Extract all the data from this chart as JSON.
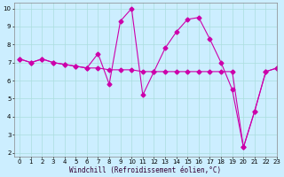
{
  "xlabel": "Windchill (Refroidissement éolien,°C)",
  "xlim": [
    -0.5,
    23
  ],
  "ylim": [
    1.8,
    10.3
  ],
  "yticks": [
    2,
    3,
    4,
    5,
    6,
    7,
    8,
    9,
    10
  ],
  "xticks": [
    0,
    1,
    2,
    3,
    4,
    5,
    6,
    7,
    8,
    9,
    10,
    11,
    12,
    13,
    14,
    15,
    16,
    17,
    18,
    19,
    20,
    21,
    22,
    23
  ],
  "background_color": "#cceeff",
  "grid_color": "#aadddd",
  "line_color": "#cc00aa",
  "series1_x": [
    0,
    1,
    2,
    3,
    4,
    5,
    6,
    7,
    8,
    9,
    10,
    11,
    12,
    13,
    14,
    15,
    16,
    17,
    18,
    19,
    20,
    21,
    22,
    23
  ],
  "series1_y": [
    7.2,
    7.0,
    7.2,
    7.0,
    6.9,
    6.8,
    6.7,
    7.5,
    5.8,
    9.3,
    10.0,
    5.2,
    6.5,
    7.8,
    8.7,
    9.4,
    9.5,
    8.3,
    7.0,
    5.5,
    2.3,
    4.3,
    6.5,
    6.7
  ],
  "series2_x": [
    0,
    1,
    2,
    3,
    4,
    5,
    6,
    7,
    8,
    9,
    10,
    11,
    12,
    13,
    14,
    15,
    16,
    17,
    18,
    19,
    20,
    21,
    22,
    23
  ],
  "series2_y": [
    7.2,
    7.0,
    7.2,
    7.0,
    6.9,
    6.8,
    6.7,
    6.7,
    6.6,
    6.6,
    6.6,
    6.5,
    6.5,
    6.5,
    6.5,
    6.5,
    6.5,
    6.5,
    6.5,
    6.5,
    2.3,
    4.3,
    6.5,
    6.7
  ],
  "marker": "D",
  "markersize": 2.5,
  "linewidth": 0.8,
  "tick_fontsize": 5,
  "xlabel_fontsize": 5.5
}
